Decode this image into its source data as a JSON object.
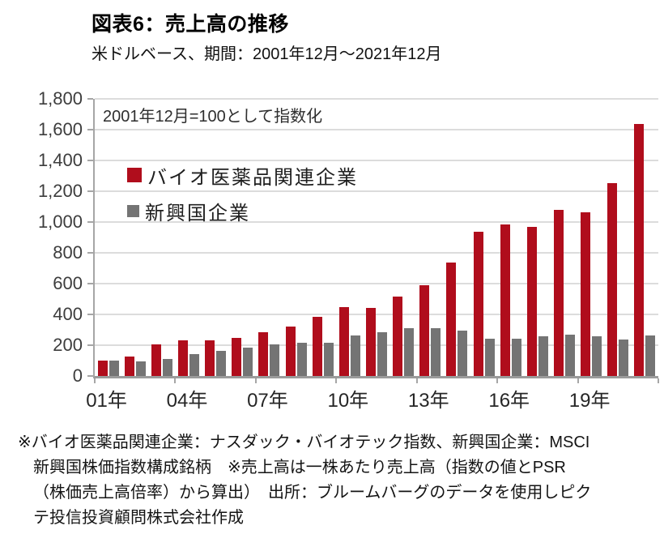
{
  "header": {
    "title": "図表6：売上高の推移",
    "subtitle": "米ドルベース、期間：2001年12月～2021年12月"
  },
  "chart_data": {
    "type": "bar",
    "title": "図表6：売上高の推移",
    "subtitle": "米ドルベース、期間：2001年12月～2021年12月",
    "annotation": "2001年12月=100として指数化",
    "x": [
      2001,
      2002,
      2003,
      2004,
      2005,
      2006,
      2007,
      2008,
      2009,
      2010,
      2011,
      2012,
      2013,
      2014,
      2015,
      2016,
      2017,
      2018,
      2019,
      2020,
      2021
    ],
    "xtick_labels": [
      "01年",
      "04年",
      "07年",
      "10年",
      "13年",
      "16年",
      "19年"
    ],
    "xtick_every": 3,
    "ylim": [
      0,
      1800
    ],
    "ytick_step": 200,
    "ytick_labels_top_to_bottom": [
      "1,800",
      "1,600",
      "1,400",
      "1,200",
      "1,000",
      "800",
      "600",
      "400",
      "200",
      "0"
    ],
    "grid": true,
    "legend_position": "inside-top-left",
    "series": [
      {
        "name": "バイオ医薬品関連企業",
        "color": "#b00d1c",
        "values": [
          100,
          125,
          205,
          230,
          230,
          250,
          285,
          320,
          385,
          450,
          440,
          515,
          590,
          735,
          935,
          985,
          970,
          1080,
          1065,
          1255,
          1635
        ]
      },
      {
        "name": "新興国企業",
        "color": "#747474",
        "values": [
          100,
          95,
          110,
          140,
          165,
          185,
          205,
          215,
          215,
          265,
          285,
          310,
          310,
          295,
          240,
          240,
          260,
          270,
          260,
          235,
          265
        ]
      }
    ]
  },
  "colors": {
    "gridline": "#dcdcdc",
    "axis": "#a6a6a6",
    "background": "#ffffff"
  },
  "footnote": {
    "lines": [
      "※バイオ医薬品関連企業：ナスダック・バイオテック指数、新興国企業：MSCI",
      "新興国株価指数構成銘柄　※売上高は一株あたり売上高（指数の値とPSR",
      "（株価売上高倍率）から算出）　出所：ブルームバーグのデータを使用しピク",
      "テ投信投資顧問株式会社作成"
    ]
  }
}
